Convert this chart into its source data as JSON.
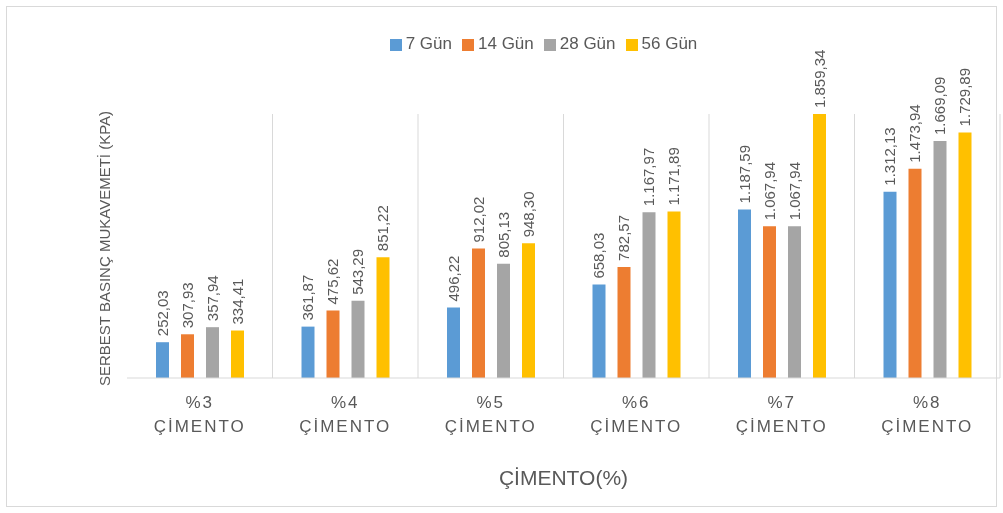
{
  "chart_data": {
    "type": "bar",
    "xlabel": "ÇİMENTO(%)",
    "ylabel": "SERBEST BASINÇ MUKAVEMETİ (KPA)",
    "categories": [
      "%3 ÇİMENTO",
      "%4 ÇİMENTO",
      "%5 ÇİMENTO",
      "%6 ÇİMENTO",
      "%7 ÇİMENTO",
      "%8 ÇİMENTO"
    ],
    "series": [
      {
        "name": "7 Gün",
        "color": "#5b9bd5",
        "values": [
          252.03,
          361.87,
          496.22,
          658.03,
          1187.59,
          1312.13
        ],
        "value_labels": [
          "252,03",
          "361,87",
          "496,22",
          "658,03",
          "1.187,59",
          "1.312,13"
        ]
      },
      {
        "name": "14 Gün",
        "color": "#ed7d31",
        "values": [
          307.93,
          475.62,
          912.02,
          782.57,
          1067.94,
          1473.94
        ],
        "value_labels": [
          "307,93",
          "475,62",
          "912,02",
          "782,57",
          "1.067,94",
          "1.473,94"
        ]
      },
      {
        "name": "28 Gün",
        "color": "#a5a5a5",
        "values": [
          357.94,
          543.29,
          805.13,
          1167.97,
          1067.94,
          1669.09
        ],
        "value_labels": [
          "357,94",
          "543,29",
          "805,13",
          "1.167,97",
          "1.067,94",
          "1.669,09"
        ]
      },
      {
        "name": "56 Gün",
        "color": "#ffc000",
        "values": [
          334.41,
          851.22,
          948.3,
          1171.89,
          1859.34,
          1729.89
        ],
        "value_labels": [
          "334,41",
          "851,22",
          "948,30",
          "1.171,89",
          "1.859,34",
          "1.729,89"
        ]
      }
    ],
    "grid": "x",
    "legend": "top"
  }
}
